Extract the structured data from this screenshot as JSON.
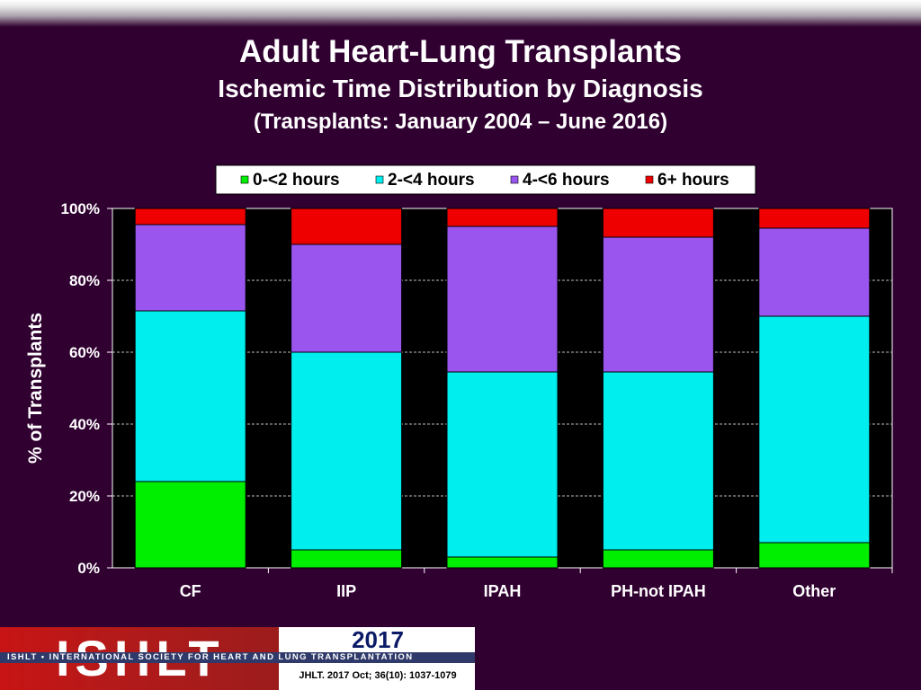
{
  "header": {
    "title": "Adult Heart-Lung Transplants",
    "subtitle": "Ischemic Time Distribution by Diagnosis",
    "period": "(Transplants: January 2004 – June 2016)"
  },
  "chart_data": {
    "type": "bar",
    "stacked": true,
    "categories": [
      "CF",
      "IIP",
      "IPAH",
      "PH-not IPAH",
      "Other"
    ],
    "series": [
      {
        "name": "0-<2 hours",
        "color": "#00ee00",
        "values": [
          24,
          5,
          3,
          5,
          7
        ]
      },
      {
        "name": "2-<4 hours",
        "color": "#00eeee",
        "values": [
          47.5,
          55,
          51.5,
          49.5,
          63
        ]
      },
      {
        "name": "4-<6 hours",
        "color": "#9955ee",
        "values": [
          24,
          30,
          40.5,
          37.5,
          24.5
        ]
      },
      {
        "name": "6+ hours",
        "color": "#ee0000",
        "values": [
          4.5,
          10,
          5,
          8,
          5.5
        ]
      }
    ],
    "ylabel": "% of Transplants",
    "xlabel": "",
    "ylim": [
      0,
      100
    ],
    "yticks": [
      "0%",
      "20%",
      "40%",
      "60%",
      "80%",
      "100%"
    ],
    "legend_position": "top",
    "grid": true,
    "plot_background": "#000000"
  },
  "footer": {
    "logo_text": "ISHLT",
    "org_name": "ISHLT • INTERNATIONAL SOCIETY FOR HEART AND LUNG TRANSPLANTATION",
    "year": "2017",
    "citation": "JHLT. 2017 Oct; 36(10): 1037-1079"
  }
}
